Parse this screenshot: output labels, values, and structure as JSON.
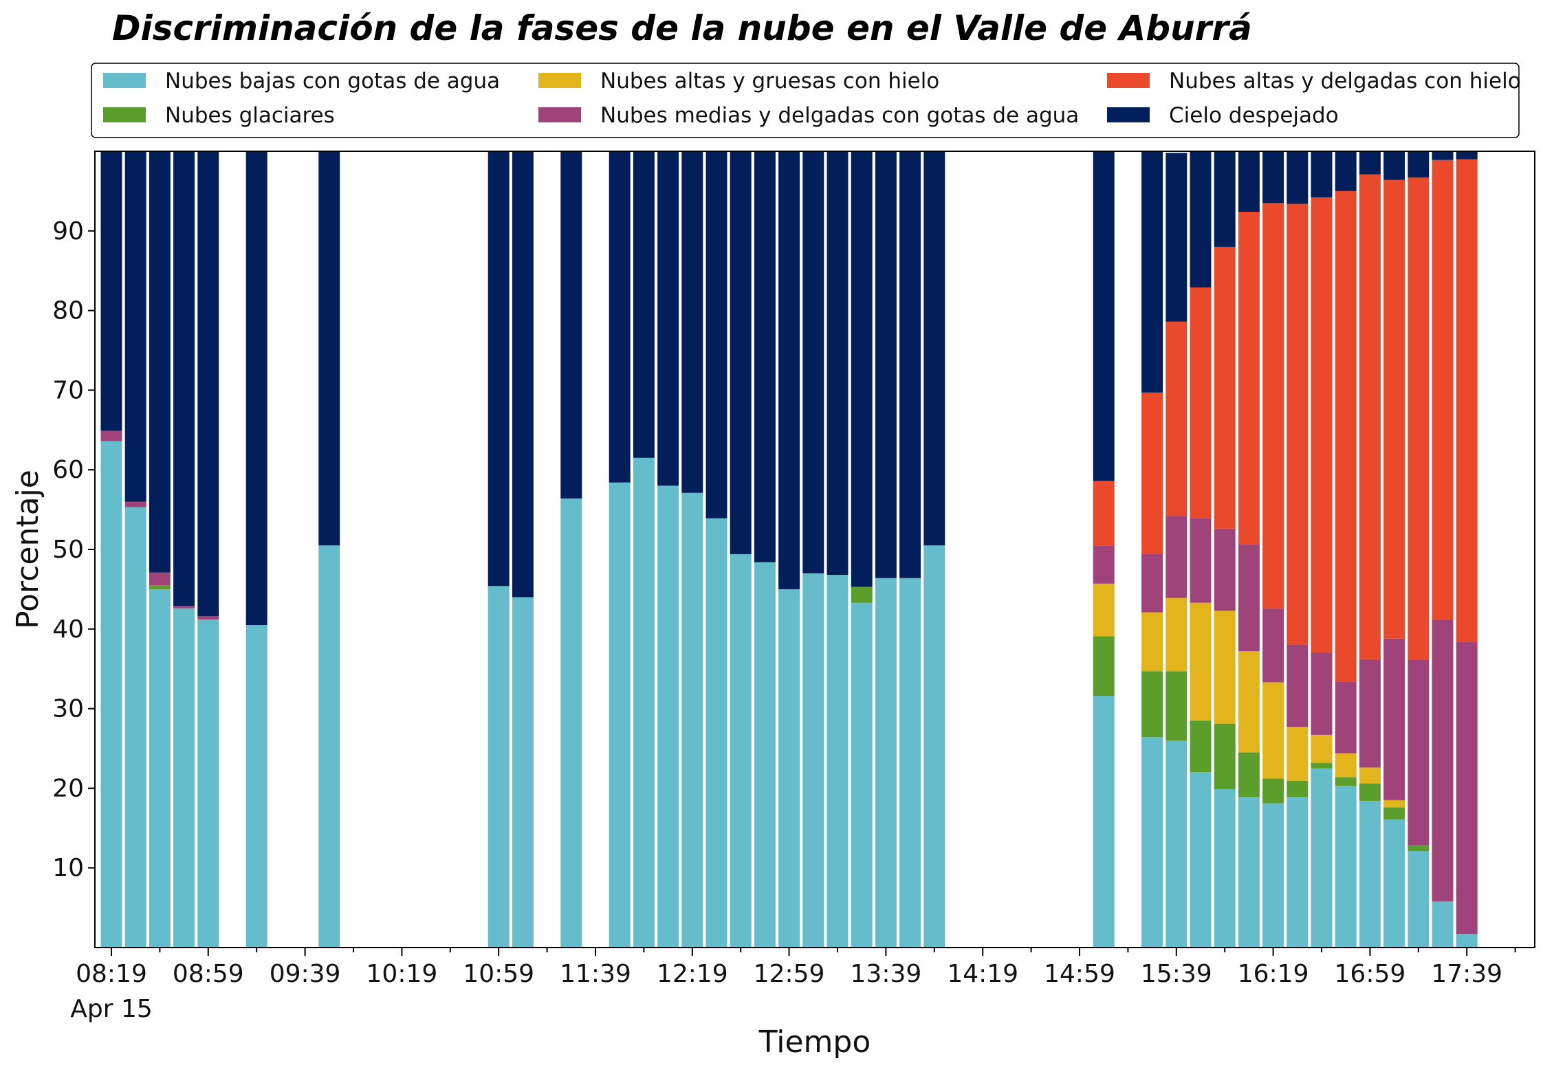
{
  "chart_data": {
    "type": "bar",
    "stacked": true,
    "title": "Discriminación de la fases de la nube en el Valle de Aburrá",
    "xlabel": "Tiempo",
    "ylabel": "Porcentaje",
    "ylim": [
      0,
      100
    ],
    "yticks": [
      10,
      20,
      30,
      40,
      50,
      60,
      70,
      80,
      90
    ],
    "xticks": [
      "08:19",
      "08:59",
      "09:39",
      "10:19",
      "10:59",
      "11:39",
      "12:19",
      "12:59",
      "13:39",
      "14:19",
      "14:59",
      "15:39",
      "16:19",
      "16:59",
      "17:39"
    ],
    "date_label": "Apr 15",
    "x_start": "08:19",
    "x_step_minutes": 10,
    "legend_position": "top (above plot, 3 columns)",
    "grid": false,
    "x": [
      "08:19",
      "08:29",
      "08:39",
      "08:49",
      "08:59",
      "09:09",
      "09:19",
      "09:29",
      "09:39",
      "09:49",
      "09:59",
      "10:09",
      "10:19",
      "10:29",
      "10:39",
      "10:49",
      "10:59",
      "11:09",
      "11:19",
      "11:29",
      "11:39",
      "11:49",
      "11:59",
      "12:09",
      "12:19",
      "12:29",
      "12:39",
      "12:49",
      "12:59",
      "13:09",
      "13:19",
      "13:29",
      "13:39",
      "13:49",
      "13:59",
      "14:09",
      "14:19",
      "14:29",
      "14:39",
      "14:49",
      "14:59",
      "15:09",
      "15:19",
      "15:29",
      "15:39",
      "15:49",
      "15:59",
      "16:09",
      "16:19",
      "16:29",
      "16:39",
      "16:49",
      "16:59",
      "17:09",
      "17:19",
      "17:29",
      "17:39"
    ],
    "series": [
      {
        "name": "Nubes bajas con gotas de agua",
        "color": "#65bcca",
        "values": [
          63.6,
          55.3,
          45.0,
          42.6,
          41.2,
          null,
          40.5,
          null,
          null,
          50.5,
          null,
          null,
          null,
          null,
          null,
          null,
          45.4,
          44.0,
          null,
          56.4,
          null,
          58.4,
          61.5,
          58.0,
          57.1,
          53.9,
          49.4,
          48.4,
          45.0,
          47.0,
          46.8,
          43.3,
          46.4,
          46.4,
          50.5,
          null,
          null,
          null,
          null,
          null,
          null,
          31.6,
          null,
          26.4,
          26.0,
          22.0,
          19.9,
          18.9,
          18.1,
          18.9,
          22.5,
          20.3,
          18.4,
          16.1,
          12.1,
          5.8,
          1.7
        ]
      },
      {
        "name": "Nubes glaciares",
        "color": "#5b9e2c",
        "values": [
          0,
          0,
          0.5,
          0,
          0,
          null,
          0,
          null,
          null,
          0,
          null,
          null,
          null,
          null,
          null,
          null,
          0,
          0,
          null,
          0,
          null,
          0,
          0,
          0,
          0,
          0,
          0,
          0,
          0,
          0,
          0,
          2.0,
          0,
          0,
          0,
          null,
          null,
          null,
          null,
          null,
          null,
          7.5,
          null,
          8.3,
          8.7,
          6.5,
          8.2,
          5.6,
          3.1,
          2.0,
          0.7,
          1.1,
          2.2,
          1.5,
          0.7,
          0,
          0
        ]
      },
      {
        "name": "Nubes altas y gruesas con hielo",
        "color": "#e3b41c",
        "values": [
          0,
          0,
          0,
          0,
          0,
          null,
          0,
          null,
          null,
          0,
          null,
          null,
          null,
          null,
          null,
          null,
          0,
          0,
          null,
          0,
          null,
          0,
          0,
          0,
          0,
          0,
          0,
          0,
          0,
          0,
          0,
          0,
          0,
          0,
          0,
          null,
          null,
          null,
          null,
          null,
          null,
          6.6,
          null,
          7.4,
          9.2,
          14.8,
          14.2,
          12.7,
          12.1,
          6.8,
          3.5,
          3.0,
          2.0,
          0.9,
          0,
          0,
          0
        ]
      },
      {
        "name": "Nubes medias y delgadas con gotas de agua",
        "color": "#a0437b",
        "values": [
          1.3,
          0.7,
          1.6,
          0.3,
          0.4,
          null,
          0,
          null,
          null,
          0,
          null,
          null,
          null,
          null,
          null,
          null,
          0,
          0,
          null,
          0,
          null,
          0,
          0,
          0,
          0,
          0,
          0,
          0,
          0,
          0,
          0,
          0,
          0,
          0,
          0,
          null,
          null,
          null,
          null,
          null,
          null,
          4.8,
          null,
          7.3,
          10.3,
          10.6,
          10.3,
          13.4,
          9.3,
          10.3,
          10.3,
          9.0,
          13.6,
          20.3,
          23.3,
          35.4,
          36.7
        ]
      },
      {
        "name": "Nubes altas y delgadas con hielo",
        "color": "#ea4a2b",
        "values": [
          0,
          0,
          0,
          0,
          0,
          null,
          0,
          null,
          null,
          0,
          null,
          null,
          null,
          null,
          null,
          null,
          0,
          0,
          null,
          0,
          null,
          0,
          0,
          0,
          0,
          0,
          0,
          0,
          0,
          0,
          0,
          0,
          0,
          0,
          0,
          null,
          null,
          null,
          null,
          null,
          null,
          8.1,
          null,
          20.3,
          24.4,
          29.0,
          35.4,
          41.8,
          50.9,
          55.4,
          57.2,
          61.6,
          60.9,
          57.6,
          60.6,
          57.7,
          60.6
        ]
      },
      {
        "name": "Cielo despejado",
        "color": "#021f5c",
        "values": [
          35.1,
          44.0,
          52.9,
          57.1,
          58.4,
          null,
          59.5,
          null,
          null,
          49.5,
          null,
          null,
          null,
          null,
          null,
          null,
          54.6,
          56.0,
          null,
          43.6,
          null,
          41.6,
          38.5,
          42.0,
          42.9,
          46.1,
          50.6,
          51.6,
          55.0,
          53.0,
          53.2,
          54.7,
          53.6,
          53.6,
          49.5,
          null,
          null,
          null,
          null,
          null,
          null,
          41.4,
          null,
          30.3,
          21.2,
          17.1,
          12.0,
          7.6,
          6.5,
          6.6,
          5.8,
          5.0,
          2.9,
          3.6,
          3.3,
          1.1,
          1.0
        ]
      }
    ]
  }
}
